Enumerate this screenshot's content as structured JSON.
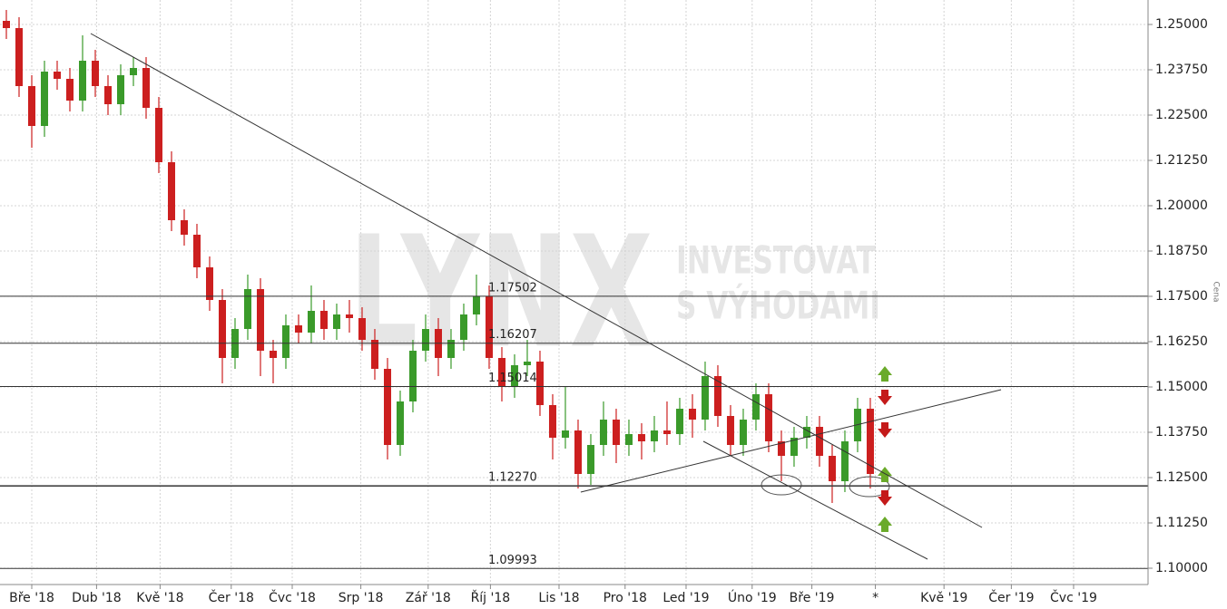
{
  "chart_data": {
    "type": "candlestick",
    "y_axis_label": "Cena",
    "watermark": {
      "logo": "LYNX",
      "tagline": [
        "INVESTOVAT",
        "S VÝHODAMI"
      ]
    },
    "x": [
      0,
      1,
      2,
      3,
      4,
      5,
      6,
      7,
      8,
      9,
      10,
      11,
      12,
      13,
      14,
      15,
      16,
      17,
      18,
      19,
      20,
      21,
      22,
      23,
      24,
      25,
      26,
      27,
      28,
      29,
      30,
      31,
      32,
      33,
      34,
      35,
      36,
      37,
      38,
      39,
      40,
      41,
      42,
      43,
      44,
      45,
      46,
      47,
      48,
      49,
      50,
      51,
      52,
      53,
      54,
      55,
      56,
      57,
      58,
      59,
      60,
      61,
      62,
      63,
      64,
      65,
      66,
      67,
      68
    ],
    "open": [
      1.251,
      1.249,
      1.233,
      1.222,
      1.237,
      1.235,
      1.229,
      1.24,
      1.233,
      1.228,
      1.236,
      1.238,
      1.227,
      1.212,
      1.196,
      1.192,
      1.183,
      1.174,
      1.158,
      1.166,
      1.177,
      1.16,
      1.158,
      1.167,
      1.165,
      1.171,
      1.166,
      1.17,
      1.169,
      1.163,
      1.155,
      1.134,
      1.146,
      1.16,
      1.166,
      1.158,
      1.163,
      1.17,
      1.175,
      1.158,
      1.15,
      1.156,
      1.157,
      1.145,
      1.136,
      1.138,
      1.126,
      1.134,
      1.141,
      1.134,
      1.137,
      1.135,
      1.138,
      1.137,
      1.144,
      1.141,
      1.153,
      1.142,
      1.134,
      1.141,
      1.148,
      1.135,
      1.131,
      1.136,
      1.139,
      1.131,
      1.124,
      1.135,
      1.144
    ],
    "high": [
      1.254,
      1.252,
      1.236,
      1.24,
      1.24,
      1.238,
      1.247,
      1.243,
      1.236,
      1.239,
      1.241,
      1.241,
      1.23,
      1.215,
      1.199,
      1.195,
      1.186,
      1.177,
      1.169,
      1.181,
      1.18,
      1.163,
      1.17,
      1.17,
      1.178,
      1.174,
      1.173,
      1.174,
      1.172,
      1.166,
      1.158,
      1.149,
      1.163,
      1.17,
      1.169,
      1.166,
      1.173,
      1.181,
      1.178,
      1.161,
      1.159,
      1.163,
      1.16,
      1.148,
      1.15,
      1.141,
      1.137,
      1.146,
      1.144,
      1.141,
      1.14,
      1.142,
      1.146,
      1.147,
      1.148,
      1.157,
      1.156,
      1.145,
      1.144,
      1.151,
      1.151,
      1.138,
      1.139,
      1.142,
      1.142,
      1.134,
      1.138,
      1.147,
      1.147
    ],
    "low": [
      1.246,
      1.23,
      1.216,
      1.219,
      1.232,
      1.226,
      1.226,
      1.23,
      1.225,
      1.225,
      1.233,
      1.224,
      1.209,
      1.193,
      1.189,
      1.18,
      1.171,
      1.151,
      1.155,
      1.163,
      1.153,
      1.151,
      1.155,
      1.162,
      1.162,
      1.163,
      1.163,
      1.165,
      1.16,
      1.152,
      1.13,
      1.131,
      1.143,
      1.157,
      1.153,
      1.155,
      1.16,
      1.167,
      1.155,
      1.146,
      1.147,
      1.153,
      1.142,
      1.13,
      1.133,
      1.122,
      1.123,
      1.131,
      1.129,
      1.131,
      1.13,
      1.132,
      1.134,
      1.134,
      1.136,
      1.138,
      1.139,
      1.131,
      1.131,
      1.138,
      1.132,
      1.124,
      1.128,
      1.133,
      1.128,
      1.118,
      1.121,
      1.132,
      1.122
    ],
    "close": [
      1.249,
      1.233,
      1.222,
      1.237,
      1.235,
      1.229,
      1.24,
      1.233,
      1.228,
      1.236,
      1.238,
      1.227,
      1.212,
      1.196,
      1.192,
      1.183,
      1.174,
      1.158,
      1.166,
      1.177,
      1.16,
      1.158,
      1.167,
      1.165,
      1.171,
      1.166,
      1.17,
      1.169,
      1.163,
      1.155,
      1.134,
      1.146,
      1.16,
      1.166,
      1.158,
      1.163,
      1.17,
      1.175,
      1.158,
      1.15,
      1.156,
      1.157,
      1.145,
      1.136,
      1.138,
      1.126,
      1.134,
      1.141,
      1.134,
      1.137,
      1.135,
      1.138,
      1.137,
      1.144,
      1.141,
      1.153,
      1.142,
      1.134,
      1.141,
      1.148,
      1.135,
      1.131,
      1.136,
      1.139,
      1.131,
      1.124,
      1.135,
      1.144,
      1.126
    ],
    "up_color": "#3a9a2a",
    "down_color": "#cc1f1f",
    "xlim": [
      -0.5,
      89.86
    ],
    "xticks": [
      {
        "value": 2,
        "label": "Bře '18"
      },
      {
        "value": 7.1,
        "label": "Dub '18"
      },
      {
        "value": 12.1,
        "label": "Kvě '18"
      },
      {
        "value": 17.7,
        "label": "Čer '18"
      },
      {
        "value": 22.5,
        "label": "Čvc '18"
      },
      {
        "value": 27.9,
        "label": "Srp '18"
      },
      {
        "value": 33.2,
        "label": "Zář '18"
      },
      {
        "value": 38.1,
        "label": "Říj '18"
      },
      {
        "value": 43.5,
        "label": "Lis '18"
      },
      {
        "value": 48.7,
        "label": "Pro '18"
      },
      {
        "value": 53.5,
        "label": "Led '19"
      },
      {
        "value": 58.7,
        "label": "Úno '19"
      },
      {
        "value": 63.4,
        "label": "Bře '19"
      },
      {
        "value": 68.4,
        "label": "*"
      },
      {
        "value": 73.8,
        "label": "Kvě '19"
      },
      {
        "value": 79.1,
        "label": "Čer '19"
      },
      {
        "value": 84.0,
        "label": "Čvc '19"
      }
    ],
    "ylim": [
      1.0955,
      1.25675
    ],
    "yticks": [
      {
        "value": 1.25,
        "label": "1.25000"
      },
      {
        "value": 1.2375,
        "label": "1.23750"
      },
      {
        "value": 1.225,
        "label": "1.22500"
      },
      {
        "value": 1.2125,
        "label": "1.21250"
      },
      {
        "value": 1.2,
        "label": "1.20000"
      },
      {
        "value": 1.1875,
        "label": "1.18750"
      },
      {
        "value": 1.175,
        "label": "1.17500"
      },
      {
        "value": 1.1625,
        "label": "1.16250"
      },
      {
        "value": 1.15,
        "label": "1.15000"
      },
      {
        "value": 1.1375,
        "label": "1.13750"
      },
      {
        "value": 1.125,
        "label": "1.12500"
      },
      {
        "value": 1.1125,
        "label": "1.11250"
      },
      {
        "value": 1.1,
        "label": "1.10000"
      }
    ],
    "grid": true,
    "levels": {
      "values": [
        1.17502,
        1.16207,
        1.15014,
        1.1227,
        1.09993
      ],
      "value_labels": [
        "1.17502",
        "1.16207",
        "1.15014",
        "1.12270",
        "1.09993"
      ]
    },
    "trend_lines": [
      {
        "x": [
          6.64,
          76.79
        ],
        "y": [
          1.2475,
          1.11125
        ]
      },
      {
        "x": [
          45.21,
          78.29
        ],
        "y": [
          1.121,
          1.14925
        ]
      },
      {
        "x": [
          54.86,
          72.5
        ],
        "y": [
          1.135,
          1.1025
        ]
      }
    ]
  }
}
